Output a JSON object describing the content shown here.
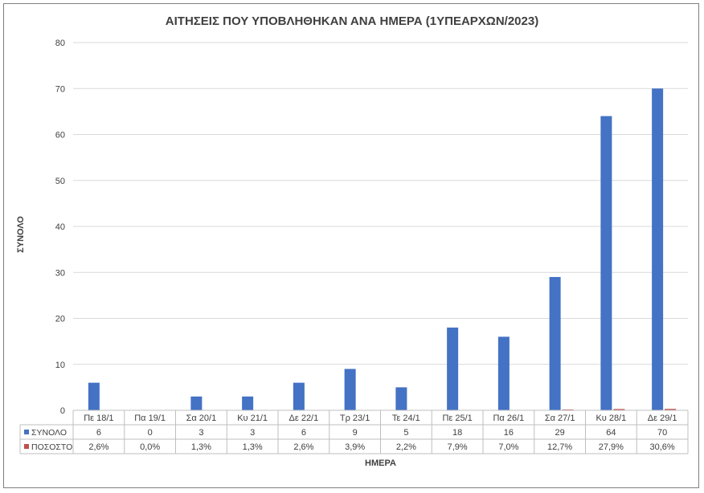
{
  "chart_data": {
    "type": "bar",
    "title": "ΑΙΤΗΣΕΙΣ ΠΟΥ ΥΠΟΒΛΗΘΗΚΑΝ ΑΝΑ ΗΜΕΡΑ (1ΥΠΕΑΡΧΩΝ/2023)",
    "xlabel": "ΗΜΕΡΑ",
    "ylabel": "ΣΥΝΟΛΟ",
    "ylim": [
      0,
      80
    ],
    "yticks": [
      "0",
      "10",
      "20",
      "30",
      "40",
      "50",
      "60",
      "70",
      "80"
    ],
    "grid": true,
    "legend": "data-table",
    "categories": [
      "Πε 18/1",
      "Πα 19/1",
      "Σα 20/1",
      "Κυ 21/1",
      "Δε 22/1",
      "Τρ 23/1",
      "Τε 24/1",
      "Πε 25/1",
      "Πα 26/1",
      "Σα 27/1",
      "Κυ 28/1",
      "Δε 29/1"
    ],
    "series": [
      {
        "name": "ΣΥΝΟΛΟ",
        "color": "#4472c4",
        "values": [
          6,
          0,
          3,
          3,
          6,
          9,
          5,
          18,
          16,
          29,
          64,
          70
        ],
        "labels": [
          "6",
          "0",
          "3",
          "3",
          "6",
          "9",
          "5",
          "18",
          "16",
          "29",
          "64",
          "70"
        ]
      },
      {
        "name": "ΠΟΣΟΣΤΟ",
        "color": "#c0504d",
        "values": [
          0.026,
          0.0,
          0.013,
          0.013,
          0.026,
          0.039,
          0.022,
          0.079,
          0.07,
          0.127,
          0.279,
          0.306
        ],
        "labels": [
          "2,6%",
          "0,0%",
          "1,3%",
          "1,3%",
          "2,6%",
          "3,9%",
          "2,2%",
          "7,9%",
          "7,0%",
          "12,7%",
          "27,9%",
          "30,6%"
        ]
      }
    ]
  }
}
